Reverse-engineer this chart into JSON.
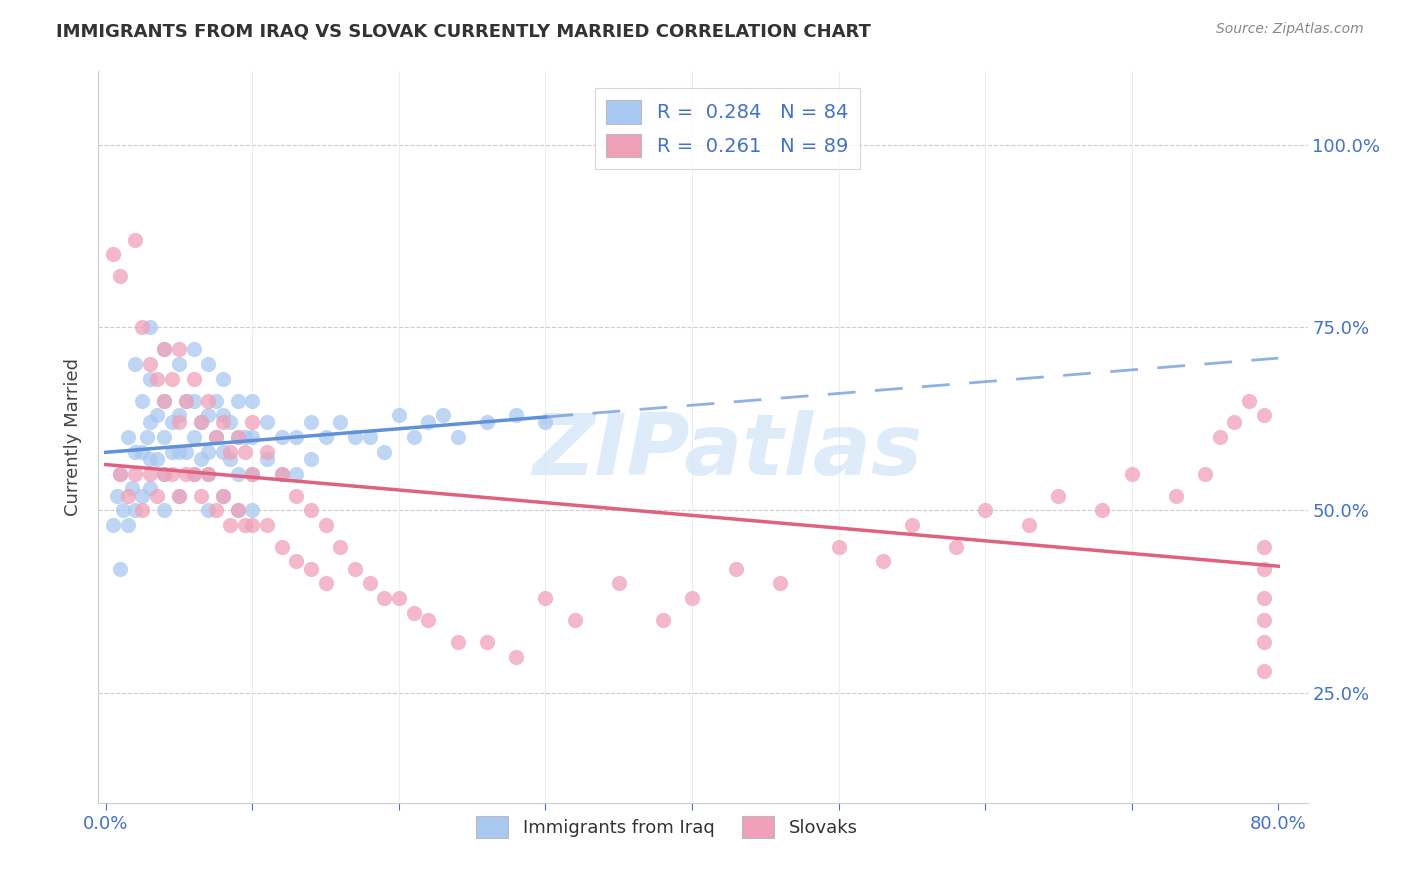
{
  "title": "IMMIGRANTS FROM IRAQ VS SLOVAK CURRENTLY MARRIED CORRELATION CHART",
  "source": "Source: ZipAtlas.com",
  "ylabel": "Currently Married",
  "ytick_values": [
    0.25,
    0.5,
    0.75,
    1.0
  ],
  "ytick_labels": [
    "25.0%",
    "50.0%",
    "75.0%",
    "100.0%"
  ],
  "xlim": [
    -0.005,
    0.82
  ],
  "ylim": [
    0.1,
    1.1
  ],
  "legend_label1": "Immigrants from Iraq",
  "legend_label2": "Slovaks",
  "color_iraq": "#a8c8f0",
  "color_slovak": "#f0a0b8",
  "trend_iraq_color": "#6090d8",
  "trend_slovak_color": "#e06080",
  "watermark_color": "#c8dff5",
  "grid_color": "#cccccc",
  "tick_color": "#4472c4",
  "title_color": "#333333",
  "source_color": "#888888",
  "iraq_x": [
    0.005,
    0.008,
    0.01,
    0.01,
    0.012,
    0.015,
    0.015,
    0.018,
    0.02,
    0.02,
    0.02,
    0.025,
    0.025,
    0.025,
    0.028,
    0.03,
    0.03,
    0.03,
    0.03,
    0.03,
    0.035,
    0.035,
    0.04,
    0.04,
    0.04,
    0.04,
    0.04,
    0.045,
    0.045,
    0.05,
    0.05,
    0.05,
    0.05,
    0.055,
    0.055,
    0.06,
    0.06,
    0.06,
    0.06,
    0.065,
    0.065,
    0.07,
    0.07,
    0.07,
    0.07,
    0.07,
    0.075,
    0.075,
    0.08,
    0.08,
    0.08,
    0.08,
    0.085,
    0.085,
    0.09,
    0.09,
    0.09,
    0.09,
    0.095,
    0.1,
    0.1,
    0.1,
    0.1,
    0.11,
    0.11,
    0.12,
    0.12,
    0.13,
    0.13,
    0.14,
    0.14,
    0.15,
    0.16,
    0.17,
    0.18,
    0.19,
    0.2,
    0.21,
    0.22,
    0.23,
    0.24,
    0.26,
    0.28,
    0.3
  ],
  "iraq_y": [
    0.48,
    0.52,
    0.55,
    0.42,
    0.5,
    0.6,
    0.48,
    0.53,
    0.7,
    0.58,
    0.5,
    0.65,
    0.58,
    0.52,
    0.6,
    0.75,
    0.68,
    0.62,
    0.57,
    0.53,
    0.63,
    0.57,
    0.72,
    0.65,
    0.6,
    0.55,
    0.5,
    0.62,
    0.58,
    0.7,
    0.63,
    0.58,
    0.52,
    0.65,
    0.58,
    0.72,
    0.65,
    0.6,
    0.55,
    0.62,
    0.57,
    0.7,
    0.63,
    0.58,
    0.55,
    0.5,
    0.65,
    0.6,
    0.68,
    0.63,
    0.58,
    0.52,
    0.62,
    0.57,
    0.65,
    0.6,
    0.55,
    0.5,
    0.6,
    0.65,
    0.6,
    0.55,
    0.5,
    0.62,
    0.57,
    0.6,
    0.55,
    0.6,
    0.55,
    0.62,
    0.57,
    0.6,
    0.62,
    0.6,
    0.6,
    0.58,
    0.63,
    0.6,
    0.62,
    0.63,
    0.6,
    0.62,
    0.63,
    0.62
  ],
  "slovak_x": [
    0.005,
    0.01,
    0.01,
    0.015,
    0.02,
    0.02,
    0.025,
    0.025,
    0.03,
    0.03,
    0.035,
    0.035,
    0.04,
    0.04,
    0.04,
    0.045,
    0.045,
    0.05,
    0.05,
    0.05,
    0.055,
    0.055,
    0.06,
    0.06,
    0.065,
    0.065,
    0.07,
    0.07,
    0.075,
    0.075,
    0.08,
    0.08,
    0.085,
    0.085,
    0.09,
    0.09,
    0.095,
    0.095,
    0.1,
    0.1,
    0.1,
    0.11,
    0.11,
    0.12,
    0.12,
    0.13,
    0.13,
    0.14,
    0.14,
    0.15,
    0.15,
    0.16,
    0.17,
    0.18,
    0.19,
    0.2,
    0.21,
    0.22,
    0.24,
    0.26,
    0.28,
    0.3,
    0.32,
    0.35,
    0.38,
    0.4,
    0.43,
    0.46,
    0.5,
    0.53,
    0.55,
    0.58,
    0.6,
    0.63,
    0.65,
    0.68,
    0.7,
    0.73,
    0.75,
    0.76,
    0.77,
    0.78,
    0.79,
    0.79,
    0.79,
    0.79,
    0.79,
    0.79,
    0.79
  ],
  "slovak_y": [
    0.85,
    0.82,
    0.55,
    0.52,
    0.87,
    0.55,
    0.75,
    0.5,
    0.7,
    0.55,
    0.68,
    0.52,
    0.72,
    0.65,
    0.55,
    0.68,
    0.55,
    0.72,
    0.62,
    0.52,
    0.65,
    0.55,
    0.68,
    0.55,
    0.62,
    0.52,
    0.65,
    0.55,
    0.6,
    0.5,
    0.62,
    0.52,
    0.58,
    0.48,
    0.6,
    0.5,
    0.58,
    0.48,
    0.62,
    0.55,
    0.48,
    0.58,
    0.48,
    0.55,
    0.45,
    0.52,
    0.43,
    0.5,
    0.42,
    0.48,
    0.4,
    0.45,
    0.42,
    0.4,
    0.38,
    0.38,
    0.36,
    0.35,
    0.32,
    0.32,
    0.3,
    0.38,
    0.35,
    0.4,
    0.35,
    0.38,
    0.42,
    0.4,
    0.45,
    0.43,
    0.48,
    0.45,
    0.5,
    0.48,
    0.52,
    0.5,
    0.55,
    0.52,
    0.55,
    0.6,
    0.62,
    0.65,
    0.63,
    0.28,
    0.32,
    0.35,
    0.38,
    0.42,
    0.45
  ]
}
